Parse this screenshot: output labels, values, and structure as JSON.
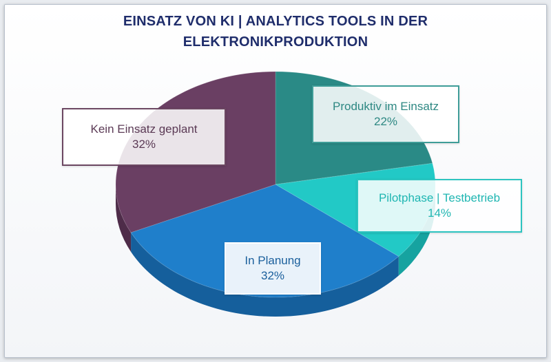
{
  "chart_data": {
    "type": "pie",
    "title_lines": [
      "EINSATZ VON KI | ANALYTICS TOOLS IN DER",
      "ELEKTRONIKPRODUKTION"
    ],
    "slices": [
      {
        "label": "Produktiv im Einsatz",
        "value": 22,
        "display": "22%",
        "color": "#2a8a86",
        "side": "#1e6d6a"
      },
      {
        "label": "Pilotphase | Testbetrieb",
        "value": 14,
        "display": "14%",
        "color": "#22c9c6",
        "side": "#16a3a0"
      },
      {
        "label": "In Planung",
        "value": 32,
        "display": "32%",
        "color": "#1f7fcb",
        "side": "#155f9c"
      },
      {
        "label": "Kein Einsatz geplant",
        "value": 32,
        "display": "32%",
        "color": "#6a3f63",
        "side": "#4e2c49"
      }
    ]
  }
}
